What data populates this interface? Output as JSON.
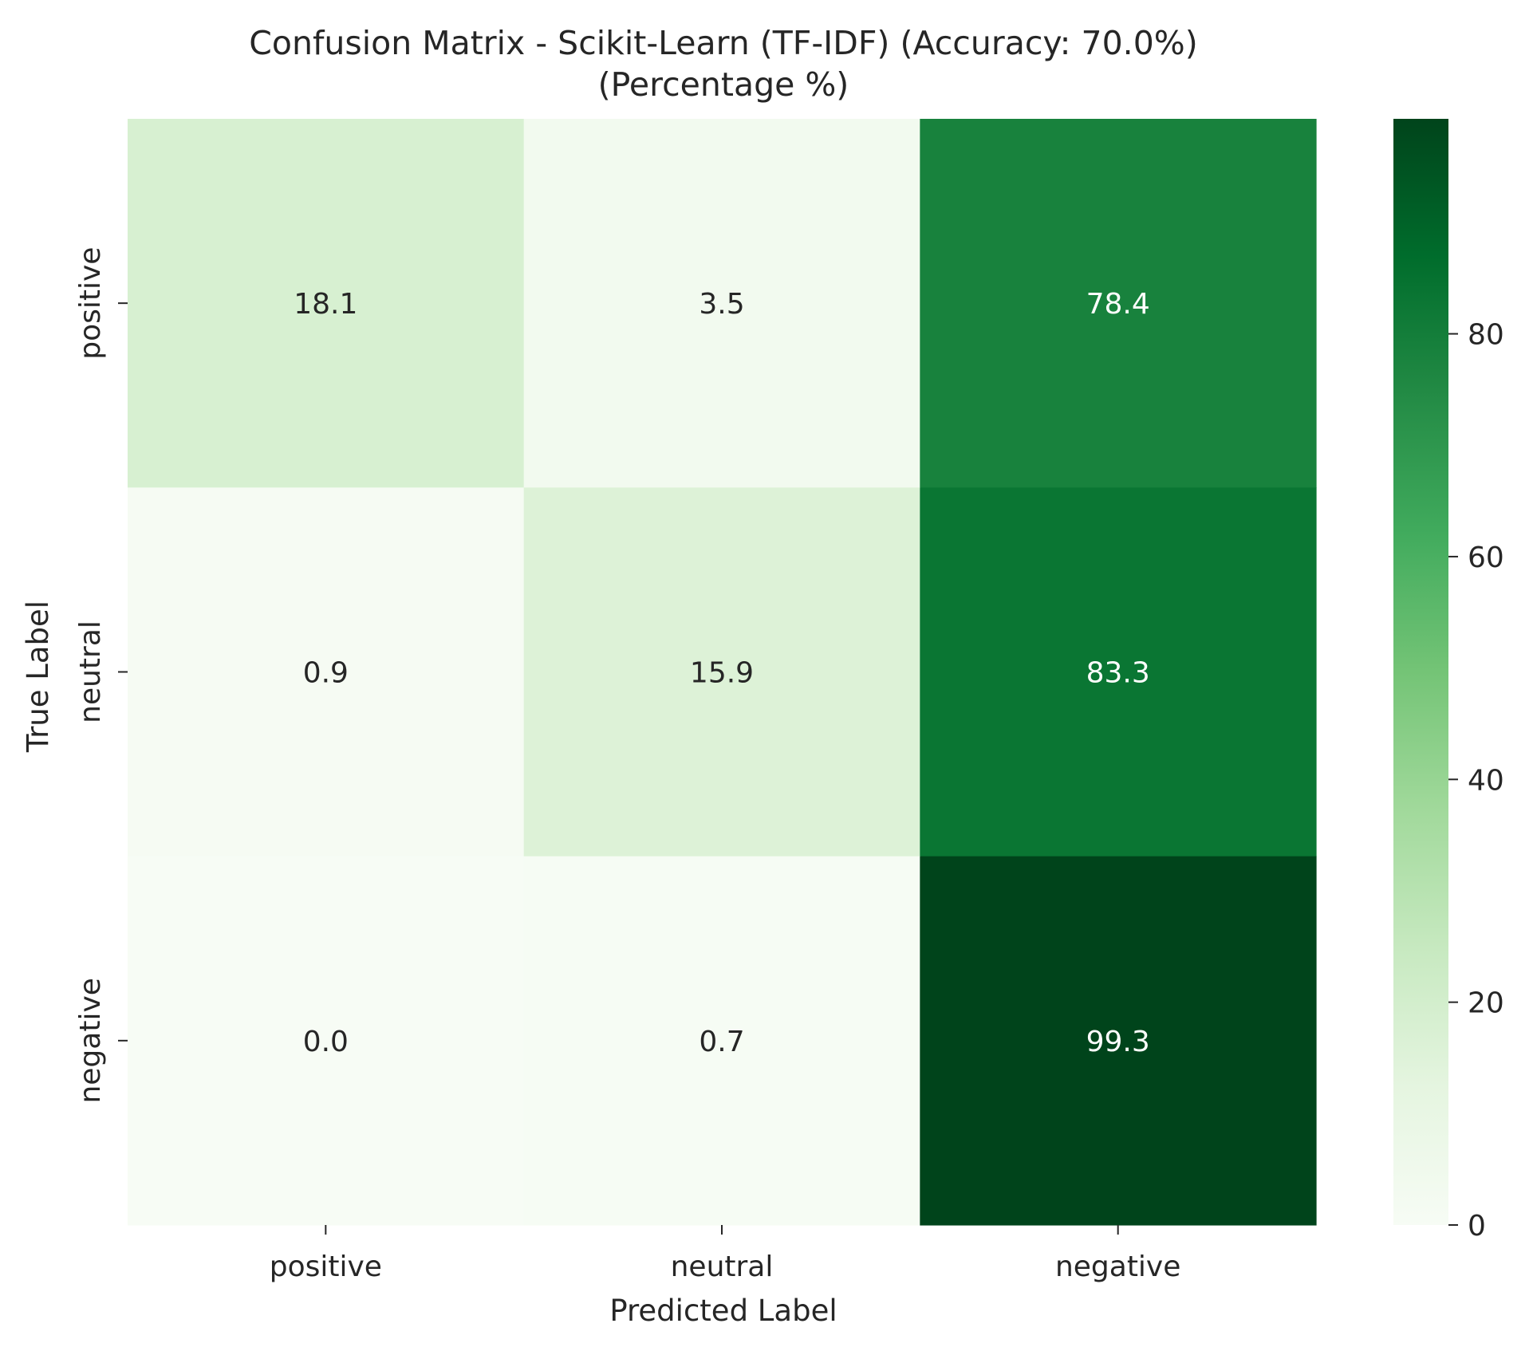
{
  "chart_data": {
    "type": "heatmap",
    "title": "Confusion Matrix - Scikit-Learn (TF-IDF) (Accuracy: 70.0%)",
    "subtitle": "(Percentage %)",
    "xlabel": "Predicted Label",
    "ylabel": "True Label",
    "x_categories": [
      "positive",
      "neutral",
      "negative"
    ],
    "y_categories": [
      "positive",
      "neutral",
      "negative"
    ],
    "values": [
      [
        18.1,
        3.5,
        78.4
      ],
      [
        0.9,
        15.9,
        83.3
      ],
      [
        0.0,
        0.7,
        99.3
      ]
    ],
    "value_labels": [
      [
        "18.1",
        "3.5",
        "78.4"
      ],
      [
        "0.9",
        "15.9",
        "83.3"
      ],
      [
        "0.0",
        "0.7",
        "99.3"
      ]
    ],
    "colormap": "Greens",
    "colorbar": {
      "range": [
        0,
        99.3
      ],
      "ticks": [
        0,
        20,
        40,
        60,
        80
      ],
      "tick_labels": [
        "0",
        "20",
        "40",
        "60",
        "80"
      ]
    }
  }
}
